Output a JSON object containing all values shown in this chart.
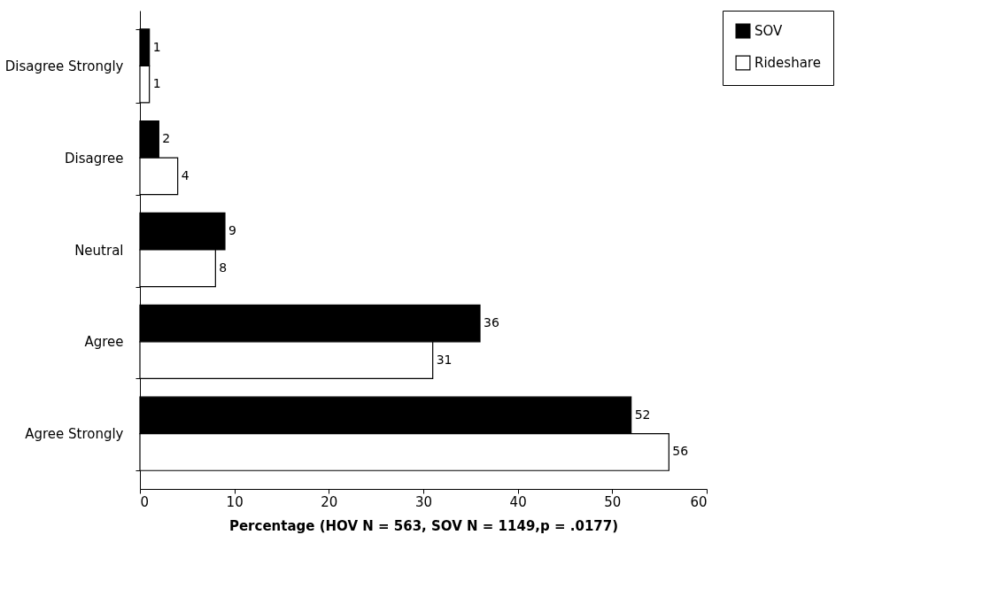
{
  "chart_data": {
    "type": "bar",
    "orientation": "horizontal",
    "xlabel": "Percentage (HOV N = 563, SOV N = 1149,p = .0177)",
    "categories": [
      "Disagree Strongly",
      "Disagree",
      "Neutral",
      "Agree",
      "Agree Strongly"
    ],
    "series": [
      {
        "name": "SOV",
        "color": "#000000",
        "values": [
          1,
          2,
          9,
          36,
          52
        ]
      },
      {
        "name": "Rideshare",
        "color": "#ffffff",
        "values": [
          1,
          4,
          8,
          31,
          56
        ]
      }
    ],
    "xlim": [
      0,
      60
    ],
    "xticks": [
      0,
      10,
      20,
      30,
      40,
      50,
      60
    ],
    "data_labels": true,
    "legend": "right",
    "grid": false
  }
}
